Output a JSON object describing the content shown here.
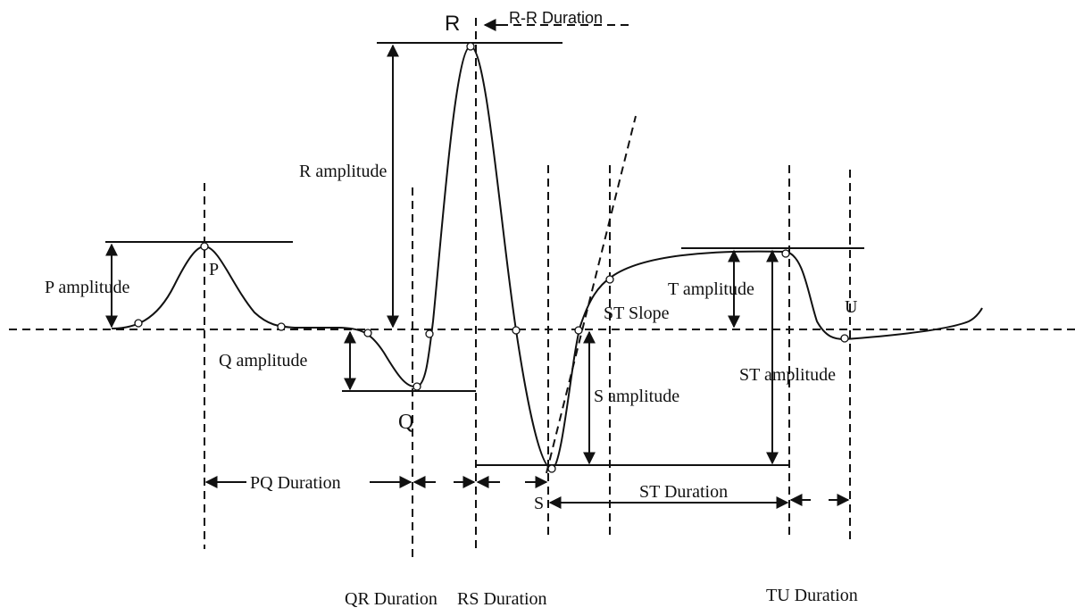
{
  "labels": {
    "r": "R",
    "rr_duration": "R-R Duration",
    "r_amplitude": "R amplitude",
    "p_amplitude": "P amplitude",
    "p": "P",
    "q_amplitude": "Q amplitude",
    "q": "Q",
    "st_slope": "ST Slope",
    "t_amplitude": "T amplitude",
    "u": "U",
    "st_amplitude": "ST amplitude",
    "s_amplitude": "S amplitude",
    "pq_duration": "PQ Duration",
    "s": "S",
    "st_duration": "ST Duration",
    "qr_duration": "QR Duration",
    "rs_duration": "RS Duration",
    "tu_duration": "TU Duration"
  }
}
